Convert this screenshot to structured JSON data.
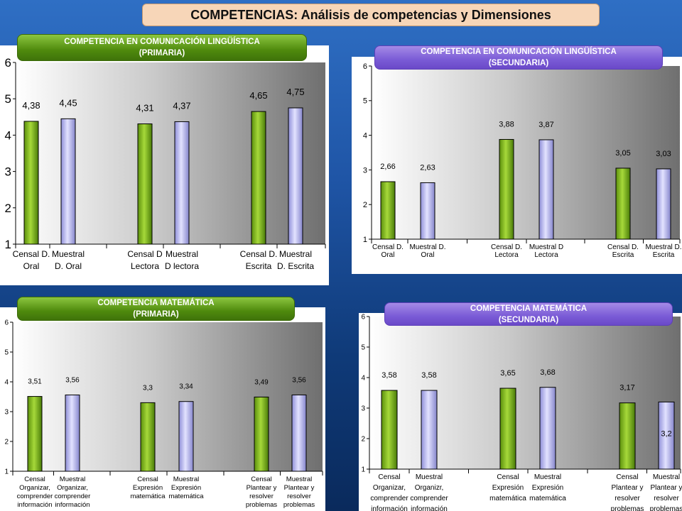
{
  "title": "COMPETENCIAS: Análisis de competencias y Dimensiones",
  "colors": {
    "censal": "#7db51c",
    "muestral": "#b8b8f0"
  },
  "charts": [
    {
      "label_line1": "COMPETENCIA  EN COMUNICACIÓN LINGÜÍSTICA",
      "label_line2": "(PRIMARIA)",
      "label_color": "green"
    },
    {
      "label_line1": "COMPETENCIA  EN COMUNICACIÓN LINGÜÍSTICA",
      "label_line2": "(SECUNDARIA)",
      "label_color": "purple"
    },
    {
      "label_line1": "COMPETENCIA  MATEMÁTICA",
      "label_line2": "(PRIMARIA)",
      "label_color": "green"
    },
    {
      "label_line1": "COMPETENCIA  MATEMÁTICA",
      "label_line2": "(SECUNDARIA)",
      "label_color": "purple"
    }
  ],
  "chart_data": [
    {
      "type": "bar",
      "ylim": [
        1,
        6
      ],
      "yticks": [
        "1",
        "2",
        "3",
        "4",
        "5",
        "6"
      ],
      "categories": [
        [
          "Censal D.",
          "Oral"
        ],
        [
          "Muestral",
          "D. Oral"
        ],
        [
          "Censal D",
          "Lectora"
        ],
        [
          "Muestral",
          "D lectora"
        ],
        [
          "Censal D.",
          "Escrita"
        ],
        [
          "Muestral",
          "D. Escrita"
        ]
      ],
      "values": [
        4.38,
        4.45,
        4.31,
        4.37,
        4.65,
        4.75
      ],
      "value_labels": [
        "4,38",
        "4,45",
        "4,31",
        "4,37",
        "4,65",
        "4,75"
      ],
      "kinds": [
        "censal",
        "muestral",
        "censal",
        "muestral",
        "censal",
        "muestral"
      ]
    },
    {
      "type": "bar",
      "ylim": [
        1,
        6
      ],
      "yticks": [
        "1",
        "2",
        "3",
        "4",
        "5",
        "6"
      ],
      "categories": [
        [
          "Censal D.",
          "Oral"
        ],
        [
          "Muestral D.",
          "Oral"
        ],
        [
          "Censal D.",
          "Lectora"
        ],
        [
          "Muestral D",
          "Lectora"
        ],
        [
          "Censal D.",
          "Escrita"
        ],
        [
          "Muestral D.",
          "Escrita"
        ]
      ],
      "values": [
        2.66,
        2.63,
        3.88,
        3.87,
        3.05,
        3.03
      ],
      "value_labels": [
        "2,66",
        "2,63",
        "3,88",
        "3,87",
        "3,05",
        "3,03"
      ],
      "kinds": [
        "censal",
        "muestral",
        "censal",
        "muestral",
        "censal",
        "muestral"
      ]
    },
    {
      "type": "bar",
      "ylim": [
        1,
        6
      ],
      "yticks": [
        "1",
        "2",
        "3",
        "4",
        "5",
        "6"
      ],
      "categories": [
        [
          "Censal",
          "Organizar,",
          "comprender",
          "información"
        ],
        [
          "Muestral",
          "Organizar,",
          "comprender",
          "información"
        ],
        [
          "Censal",
          "Expresión",
          "matemática"
        ],
        [
          "Muestral",
          "Expresión",
          "matemática"
        ],
        [
          "Censal",
          "Plantear y",
          "resolver",
          "problemas"
        ],
        [
          "Muestral",
          "Plantear y",
          "resolver",
          "problemas"
        ]
      ],
      "values": [
        3.51,
        3.56,
        3.3,
        3.34,
        3.49,
        3.56
      ],
      "value_labels": [
        "3,51",
        "3,56",
        "3,3",
        "3,34",
        "3,49",
        "3,56"
      ],
      "kinds": [
        "censal",
        "muestral",
        "censal",
        "muestral",
        "censal",
        "muestral"
      ]
    },
    {
      "type": "bar",
      "ylim": [
        1,
        6
      ],
      "yticks": [
        "1",
        "2",
        "3",
        "4",
        "5",
        "6"
      ],
      "categories": [
        [
          "Censal",
          "Organizar,",
          "comprender",
          "información"
        ],
        [
          "Muestral",
          "Organizr,",
          "comprender",
          "información"
        ],
        [
          "Censal",
          "Expresión",
          "matemática"
        ],
        [
          "Muestral",
          "Expresión",
          "matemática"
        ],
        [
          "Censal",
          "Plantear y",
          "resolver",
          "problemas"
        ],
        [
          "Muestral",
          "Plantear y",
          "resolver",
          "problemas"
        ]
      ],
      "values": [
        3.58,
        3.58,
        3.65,
        3.68,
        3.17,
        3.2
      ],
      "value_labels": [
        "3,58",
        "3,58",
        "3,65",
        "3,68",
        "3,17",
        "3,2"
      ],
      "kinds": [
        "censal",
        "muestral",
        "censal",
        "muestral",
        "censal",
        "muestral"
      ]
    }
  ]
}
